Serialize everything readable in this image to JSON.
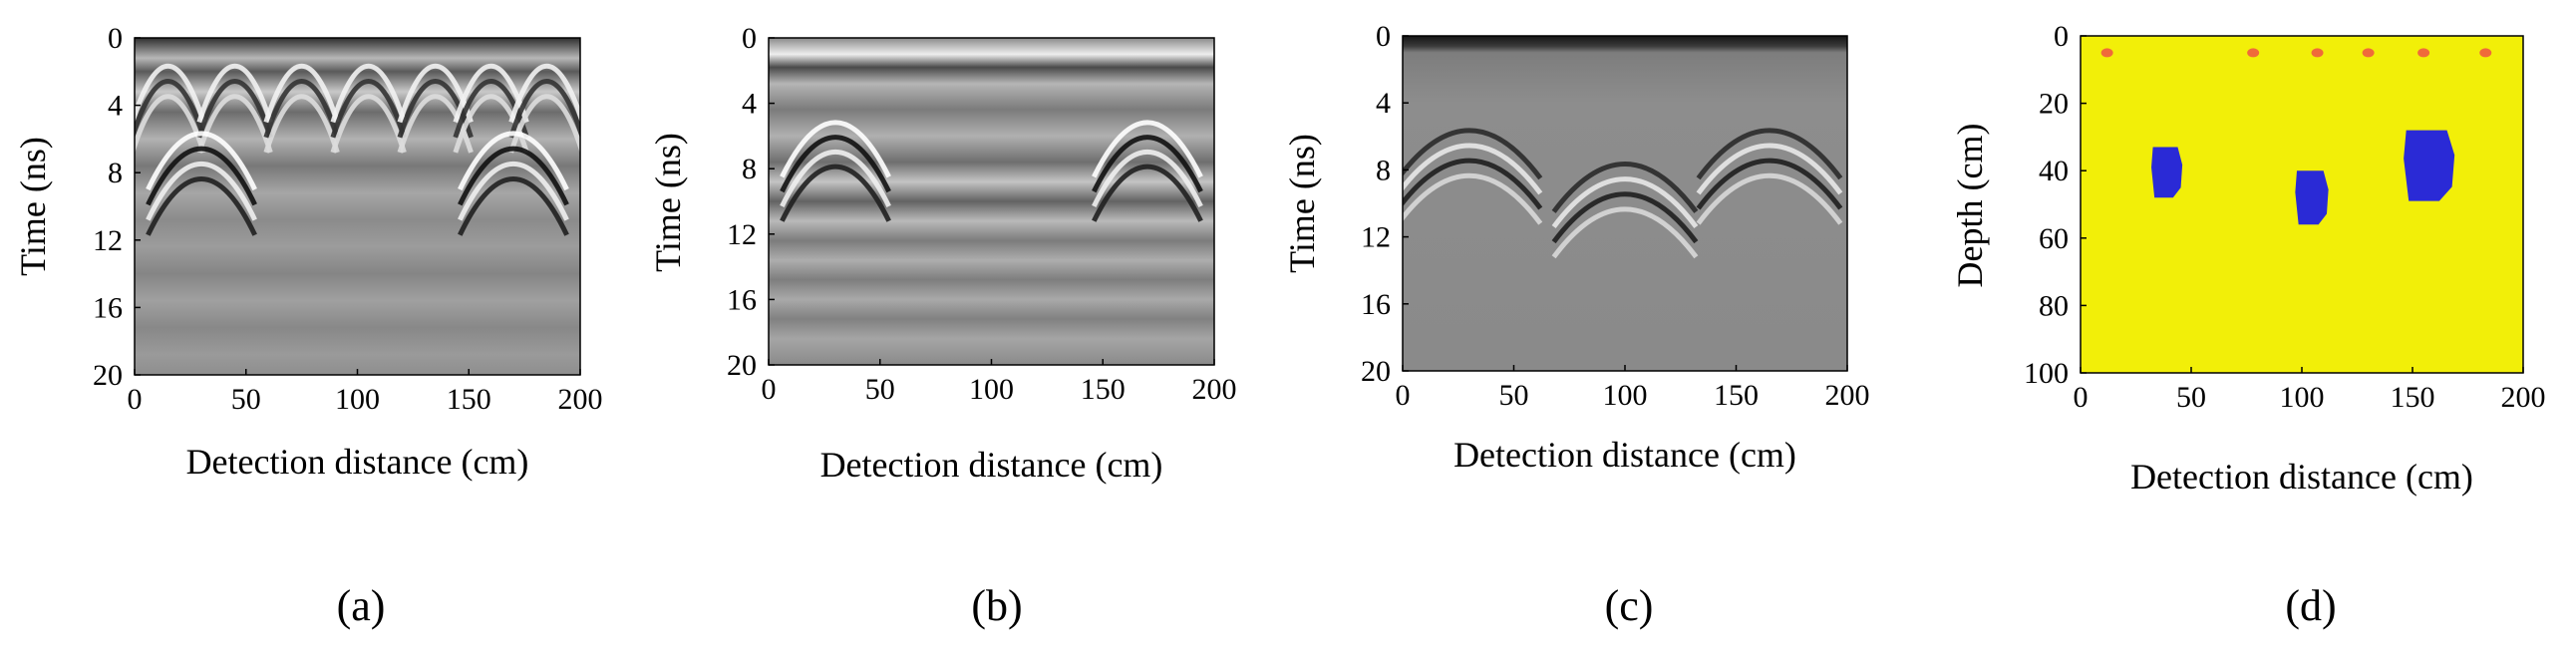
{
  "panels": [
    {
      "id": "a",
      "caption": "(a)",
      "xlabel": "Detection distance (cm)",
      "ylabel": "Time (ns)",
      "xticks": [
        "0",
        "50",
        "100",
        "150",
        "200"
      ],
      "yticks": [
        "0",
        "4",
        "8",
        "12",
        "16",
        "20"
      ]
    },
    {
      "id": "b",
      "caption": "(b)",
      "xlabel": "Detection distance (cm)",
      "ylabel": "Time (ns)",
      "xticks": [
        "0",
        "50",
        "100",
        "150",
        "200"
      ],
      "yticks": [
        "0",
        "4",
        "8",
        "12",
        "16",
        "20"
      ]
    },
    {
      "id": "c",
      "caption": "(c)",
      "xlabel": "Detection distance (cm)",
      "ylabel": "Time (ns)",
      "xticks": [
        "0",
        "50",
        "100",
        "150",
        "200"
      ],
      "yticks": [
        "0",
        "4",
        "8",
        "12",
        "16",
        "20"
      ]
    },
    {
      "id": "d",
      "caption": "(d)",
      "xlabel": "Detection distance (cm)",
      "ylabel": "Depth (cm)",
      "xticks": [
        "0",
        "50",
        "100",
        "150",
        "200"
      ],
      "yticks": [
        "0",
        "20",
        "40",
        "60",
        "80",
        "100"
      ]
    }
  ],
  "chart_data": [
    {
      "type": "heatmap",
      "title": "",
      "xlabel": "Detection distance (cm)",
      "ylabel": "Time (ns)",
      "xlim": [
        0,
        200
      ],
      "ylim": [
        20,
        0
      ],
      "colormap": "grayscale",
      "hyperbola_apex_x": [
        15,
        45,
        75,
        105,
        135,
        160,
        185
      ],
      "hyperbola_apex_t": [
        1.5,
        1.5,
        1.5,
        1.5,
        1.5,
        1.5,
        1.5
      ],
      "strong_hyperbola_apex_x": [
        30,
        170
      ],
      "strong_hyperbola_apex_t": [
        5.5,
        5.5
      ]
    },
    {
      "type": "heatmap",
      "title": "",
      "xlabel": "Detection distance (cm)",
      "ylabel": "Time (ns)",
      "xlim": [
        0,
        200
      ],
      "ylim": [
        20,
        0
      ],
      "colormap": "grayscale",
      "strong_hyperbola_apex_x": [
        30,
        170
      ],
      "strong_hyperbola_apex_t": [
        5,
        5
      ]
    },
    {
      "type": "heatmap",
      "title": "",
      "xlabel": "Detection distance (cm)",
      "ylabel": "Time (ns)",
      "xlim": [
        0,
        200
      ],
      "ylim": [
        20,
        0
      ],
      "colormap": "grayscale",
      "hyperbola_apex_x": [
        30,
        100,
        165
      ],
      "hyperbola_apex_t": [
        5.5,
        7.5,
        5.5
      ]
    },
    {
      "type": "heatmap",
      "title": "",
      "xlabel": "Detection distance (cm)",
      "ylabel": "Depth (cm)",
      "xlim": [
        0,
        200
      ],
      "ylim": [
        100,
        0
      ],
      "background_color": "#f2ef08",
      "target_color": "#2a2ad6",
      "marker_color": "#f06a3a",
      "targets": [
        {
          "x": [
            32,
            46
          ],
          "depth": [
            33,
            48
          ]
        },
        {
          "x": [
            97,
            112
          ],
          "depth": [
            40,
            56
          ]
        },
        {
          "x": [
            146,
            169
          ],
          "depth": [
            28,
            49
          ]
        }
      ],
      "surface_markers_x": [
        12,
        78,
        107,
        130,
        155,
        183
      ],
      "surface_markers_depth": [
        5,
        5,
        5,
        5,
        5,
        5
      ]
    }
  ]
}
